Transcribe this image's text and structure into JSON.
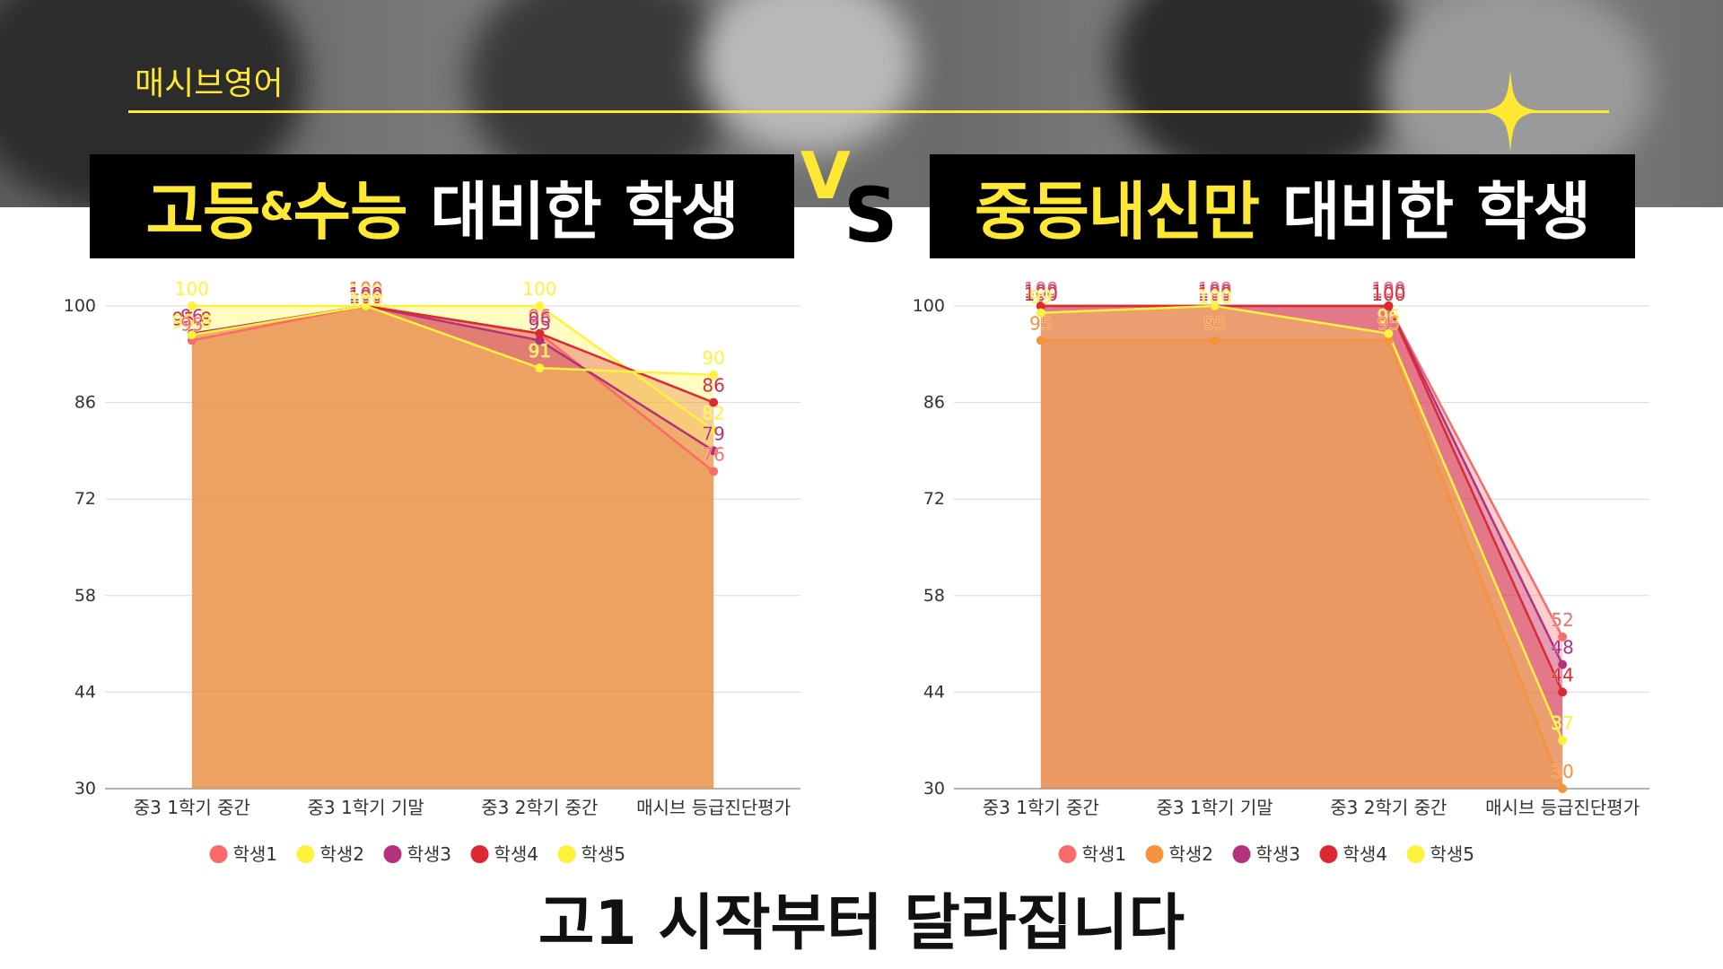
{
  "brand": "매시브영어",
  "banner_left": {
    "part1": "고등",
    "amp": "&",
    "part2": "수능",
    "rest1": "대비한",
    "rest2": "학생"
  },
  "vs": {
    "v": "V",
    "s": "S"
  },
  "banner_right": {
    "highlight": "중등내신만",
    "rest1": "대비한",
    "rest2": "학생"
  },
  "headline": "고1 시작부터 달라집니다",
  "colors": {
    "accent": "#ffe834",
    "banner_bg": "#000000"
  },
  "chart_data": [
    {
      "type": "area",
      "categories": [
        "중3 1학기 중간",
        "중3 1학기 기말",
        "중3 2학기 중간",
        "매시브 등급진단평가"
      ],
      "ylim": [
        30,
        100
      ],
      "yticks": [
        30,
        44,
        58,
        72,
        86,
        100
      ],
      "grid": true,
      "legend_position": "bottom",
      "series": [
        {
          "name": "학생1",
          "color": "#f96a6a",
          "values": [
            95,
            100,
            96,
            76
          ]
        },
        {
          "name": "학생2",
          "color": "#fff23d",
          "values": [
            100,
            100,
            100,
            82
          ]
        },
        {
          "name": "학생3",
          "color": "#b4327c",
          "values": [
            96,
            100,
            95,
            79
          ]
        },
        {
          "name": "학생4",
          "color": "#dc2a32",
          "values": [
            95.8,
            100,
            96,
            86
          ]
        },
        {
          "name": "학생5",
          "color": "#fff23d",
          "values": [
            95.8,
            100,
            91,
            90
          ]
        }
      ]
    },
    {
      "type": "area",
      "categories": [
        "중3 1학기 중간",
        "중3 1학기 기말",
        "중3 2학기 중간",
        "매시브 등급진단평가"
      ],
      "ylim": [
        30,
        100
      ],
      "yticks": [
        30,
        44,
        58,
        72,
        86,
        100
      ],
      "grid": true,
      "legend_position": "bottom",
      "series": [
        {
          "name": "학생1",
          "color": "#f96a6a",
          "values": [
            100,
            100,
            100,
            52
          ]
        },
        {
          "name": "학생2",
          "color": "#f5923c",
          "values": [
            95,
            95,
            95,
            30
          ]
        },
        {
          "name": "학생3",
          "color": "#b4327c",
          "values": [
            100,
            100,
            100,
            48
          ]
        },
        {
          "name": "학생4",
          "color": "#dc2a32",
          "values": [
            100,
            100,
            100,
            44
          ]
        },
        {
          "name": "학생5",
          "color": "#fff23d",
          "values": [
            99,
            100,
            96,
            37
          ]
        }
      ]
    }
  ]
}
